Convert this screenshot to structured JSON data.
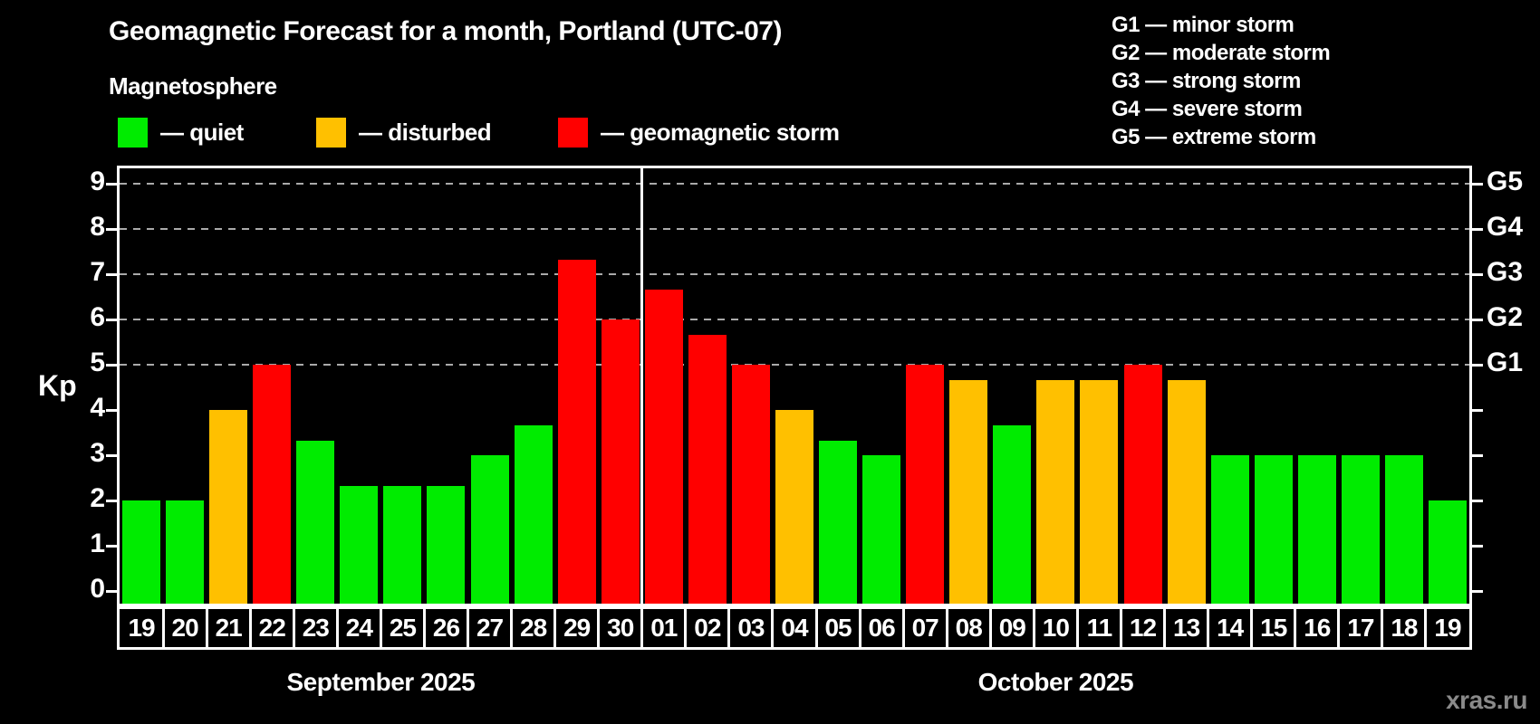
{
  "header": {
    "title": "Geomagnetic Forecast for a month, Portland (UTC-07)",
    "subtitle": "Magnetosphere"
  },
  "legend": {
    "items": [
      {
        "name": "quiet",
        "label": "— quiet",
        "color": "#00ec00"
      },
      {
        "name": "disturbed",
        "label": "— disturbed",
        "color": "#ffc000"
      },
      {
        "name": "storm",
        "label": "— geomagnetic storm",
        "color": "#ff0000"
      }
    ]
  },
  "storm_scale": {
    "items": [
      {
        "level": "G1",
        "label": "G1 — minor storm"
      },
      {
        "level": "G2",
        "label": "G2 — moderate storm"
      },
      {
        "level": "G3",
        "label": "G3 — strong storm"
      },
      {
        "level": "G4",
        "label": "G4 — severe storm"
      },
      {
        "level": "G5",
        "label": "G5 — extreme storm"
      }
    ]
  },
  "axes": {
    "y_label": "Kp",
    "y_ticks": [
      0,
      1,
      2,
      3,
      4,
      5,
      6,
      7,
      8,
      9
    ],
    "right_scale": [
      {
        "label": "G1",
        "kp": 5
      },
      {
        "label": "G2",
        "kp": 6
      },
      {
        "label": "G3",
        "kp": 7
      },
      {
        "label": "G4",
        "kp": 8
      },
      {
        "label": "G5",
        "kp": 9
      }
    ],
    "gridlines_kp": [
      5,
      6,
      7,
      8,
      9
    ]
  },
  "watermark": "xras.ru",
  "chart_data": {
    "type": "bar",
    "title": "Geomagnetic Forecast for a month, Portland (UTC-07)",
    "subtitle": "Magnetosphere",
    "ylabel": "Kp",
    "ylim": [
      0,
      9.4
    ],
    "grid": "dashed horizontal lines at Kp 5,6,7,8,9 (G1–G5)",
    "legend_position": "top-left (quiet/disturbed/storm), top-right (G1–G5 scale)",
    "categories": [
      "19",
      "20",
      "21",
      "22",
      "23",
      "24",
      "25",
      "26",
      "27",
      "28",
      "29",
      "30",
      "01",
      "02",
      "03",
      "04",
      "05",
      "06",
      "07",
      "08",
      "09",
      "10",
      "11",
      "12",
      "13",
      "14",
      "15",
      "16",
      "17",
      "18",
      "19"
    ],
    "values": [
      2,
      2,
      4,
      5,
      3.33,
      2.33,
      2.33,
      2.33,
      3,
      3.67,
      7.33,
      6,
      6.67,
      5.67,
      5,
      4,
      3.33,
      3,
      5,
      4.67,
      3.67,
      4.67,
      4.67,
      5,
      4.67,
      3,
      3,
      3,
      3,
      3,
      2
    ],
    "statuses": [
      "quiet",
      "quiet",
      "disturbed",
      "storm",
      "quiet",
      "quiet",
      "quiet",
      "quiet",
      "quiet",
      "quiet",
      "storm",
      "storm",
      "storm",
      "storm",
      "storm",
      "disturbed",
      "quiet",
      "quiet",
      "storm",
      "disturbed",
      "quiet",
      "disturbed",
      "disturbed",
      "storm",
      "disturbed",
      "quiet",
      "quiet",
      "quiet",
      "quiet",
      "quiet",
      "quiet"
    ],
    "months": [
      {
        "label": "September 2025",
        "days": 12
      },
      {
        "label": "October 2025",
        "days": 19
      }
    ],
    "status_colors": {
      "quiet": "#00ec00",
      "disturbed": "#ffc000",
      "storm": "#ff0000"
    }
  }
}
